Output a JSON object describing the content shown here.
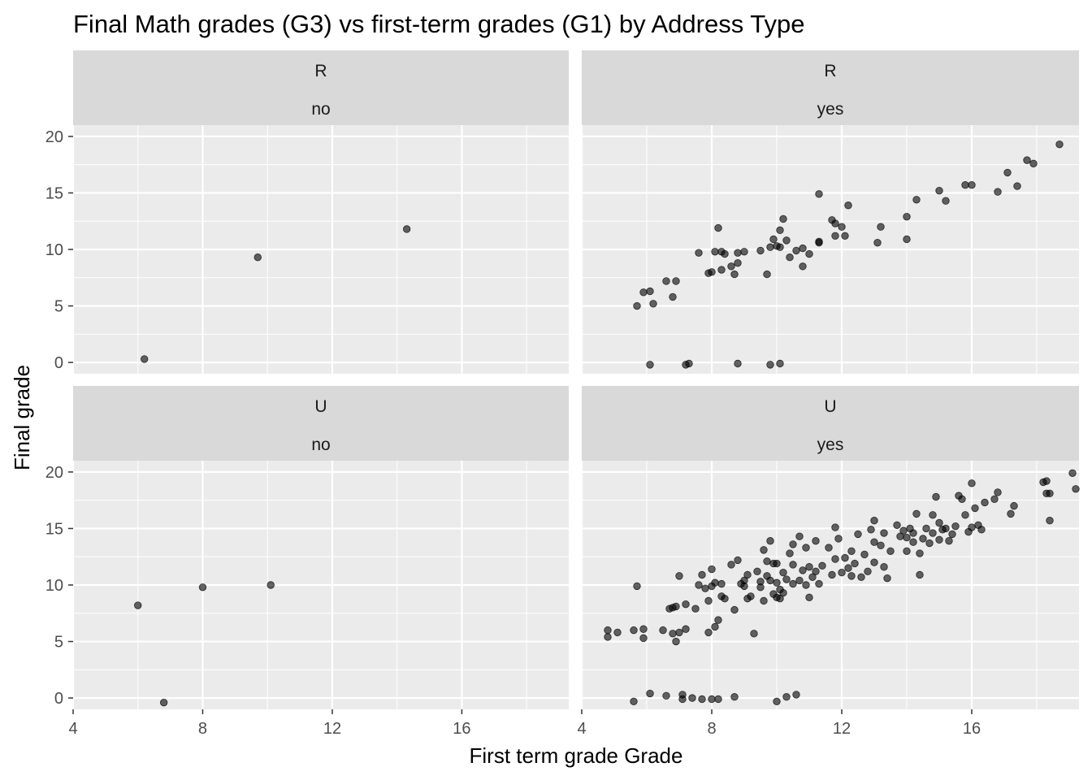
{
  "chart_data": {
    "type": "scatter",
    "title": "Final Math grades (G3) vs first-term grades (G1) by Address Type",
    "xlabel": "First term grade Grade",
    "ylabel": "Final grade",
    "xlim": [
      4,
      19.3
    ],
    "ylim": [
      -1,
      21
    ],
    "xticks": [
      4,
      8,
      12,
      16
    ],
    "yticks": [
      0,
      5,
      10,
      15,
      20
    ],
    "grid": true,
    "colors": {
      "panel_bg": "#ebebeb",
      "strip_bg": "#d9d9d9",
      "grid": "#ffffff",
      "point": "#000000"
    },
    "panels": [
      {
        "row_label": "R",
        "col_label": "no",
        "points": [
          [
            6.2,
            0.3
          ],
          [
            9.7,
            9.3
          ],
          [
            14.3,
            11.8
          ]
        ]
      },
      {
        "row_label": "R",
        "col_label": "yes",
        "points": [
          [
            5.7,
            5.0
          ],
          [
            5.9,
            6.2
          ],
          [
            6.1,
            6.3
          ],
          [
            6.1,
            -0.2
          ],
          [
            6.2,
            5.2
          ],
          [
            6.6,
            7.2
          ],
          [
            6.8,
            5.8
          ],
          [
            6.9,
            7.2
          ],
          [
            7.2,
            -0.2
          ],
          [
            7.3,
            -0.1
          ],
          [
            7.6,
            9.7
          ],
          [
            7.9,
            7.9
          ],
          [
            8.0,
            8.0
          ],
          [
            8.1,
            9.8
          ],
          [
            8.2,
            11.9
          ],
          [
            8.3,
            8.2
          ],
          [
            8.3,
            9.8
          ],
          [
            8.4,
            9.6
          ],
          [
            8.6,
            8.5
          ],
          [
            8.7,
            7.8
          ],
          [
            8.8,
            -0.1
          ],
          [
            8.8,
            9.7
          ],
          [
            8.8,
            8.8
          ],
          [
            9.0,
            9.8
          ],
          [
            9.5,
            9.9
          ],
          [
            9.7,
            7.8
          ],
          [
            9.8,
            10.2
          ],
          [
            9.8,
            -0.2
          ],
          [
            9.9,
            10.9
          ],
          [
            10.0,
            10.3
          ],
          [
            10.1,
            -0.1
          ],
          [
            10.1,
            11.7
          ],
          [
            10.2,
            12.7
          ],
          [
            10.1,
            10.2
          ],
          [
            10.3,
            10.8
          ],
          [
            10.4,
            9.3
          ],
          [
            10.6,
            9.9
          ],
          [
            10.8,
            8.5
          ],
          [
            10.8,
            10.1
          ],
          [
            11.0,
            9.6
          ],
          [
            11.3,
            10.6
          ],
          [
            11.3,
            10.7
          ],
          [
            11.3,
            14.9
          ],
          [
            11.7,
            12.6
          ],
          [
            11.8,
            11.2
          ],
          [
            11.8,
            12.3
          ],
          [
            12.0,
            12.0
          ],
          [
            12.1,
            11.2
          ],
          [
            12.2,
            13.9
          ],
          [
            13.1,
            10.6
          ],
          [
            13.2,
            12.0
          ],
          [
            14.0,
            12.9
          ],
          [
            14.0,
            10.9
          ],
          [
            14.3,
            14.4
          ],
          [
            15.0,
            15.2
          ],
          [
            15.2,
            14.3
          ],
          [
            15.8,
            15.7
          ],
          [
            16.0,
            15.7
          ],
          [
            16.8,
            15.1
          ],
          [
            17.1,
            16.8
          ],
          [
            17.4,
            15.6
          ],
          [
            17.7,
            17.9
          ],
          [
            17.9,
            17.6
          ],
          [
            18.7,
            19.3
          ]
        ]
      },
      {
        "row_label": "U",
        "col_label": "no",
        "points": [
          [
            6.0,
            8.2
          ],
          [
            6.8,
            -0.4
          ],
          [
            8.0,
            9.8
          ],
          [
            10.1,
            10.0
          ]
        ]
      },
      {
        "row_label": "U",
        "col_label": "yes",
        "points": [
          [
            4.8,
            5.4
          ],
          [
            4.8,
            6.0
          ],
          [
            5.1,
            5.8
          ],
          [
            5.6,
            6.0
          ],
          [
            5.6,
            -0.3
          ],
          [
            5.7,
            9.9
          ],
          [
            5.9,
            6.1
          ],
          [
            5.9,
            5.3
          ],
          [
            6.1,
            0.4
          ],
          [
            6.5,
            6.0
          ],
          [
            6.6,
            0.2
          ],
          [
            6.7,
            7.9
          ],
          [
            6.8,
            8.0
          ],
          [
            6.8,
            5.7
          ],
          [
            6.9,
            5.0
          ],
          [
            6.9,
            8.1
          ],
          [
            7.0,
            5.8
          ],
          [
            7.0,
            10.8
          ],
          [
            7.1,
            0.3
          ],
          [
            7.1,
            -0.1
          ],
          [
            7.2,
            6.1
          ],
          [
            7.2,
            8.3
          ],
          [
            7.4,
            0.0
          ],
          [
            7.5,
            7.9
          ],
          [
            7.6,
            10.0
          ],
          [
            7.7,
            10.9
          ],
          [
            7.7,
            -0.1
          ],
          [
            7.8,
            9.7
          ],
          [
            7.9,
            5.8
          ],
          [
            7.9,
            8.6
          ],
          [
            8.0,
            -0.1
          ],
          [
            8.0,
            9.9
          ],
          [
            8.0,
            11.4
          ],
          [
            8.1,
            6.3
          ],
          [
            8.1,
            10.2
          ],
          [
            8.2,
            -0.1
          ],
          [
            8.2,
            6.9
          ],
          [
            8.3,
            9.0
          ],
          [
            8.3,
            10.1
          ],
          [
            8.4,
            8.8
          ],
          [
            8.6,
            11.8
          ],
          [
            8.7,
            0.1
          ],
          [
            8.7,
            7.8
          ],
          [
            8.8,
            12.2
          ],
          [
            8.9,
            10.1
          ],
          [
            9.0,
            9.9
          ],
          [
            9.0,
            10.4
          ],
          [
            9.1,
            10.9
          ],
          [
            9.1,
            8.8
          ],
          [
            9.2,
            9.0
          ],
          [
            9.3,
            5.7
          ],
          [
            9.4,
            11.2
          ],
          [
            9.5,
            9.8
          ],
          [
            9.5,
            10.3
          ],
          [
            9.6,
            13.1
          ],
          [
            9.6,
            8.6
          ],
          [
            9.7,
            10.8
          ],
          [
            9.7,
            12.1
          ],
          [
            9.8,
            13.9
          ],
          [
            9.8,
            10.4
          ],
          [
            9.9,
            11.9
          ],
          [
            9.9,
            9.2
          ],
          [
            10.0,
            -0.3
          ],
          [
            10.0,
            11.9
          ],
          [
            10.0,
            8.9
          ],
          [
            10.0,
            10.2
          ],
          [
            10.1,
            9.6
          ],
          [
            10.1,
            8.8
          ],
          [
            10.2,
            9.3
          ],
          [
            10.2,
            11.1
          ],
          [
            10.3,
            10.5
          ],
          [
            10.3,
            0.1
          ],
          [
            10.4,
            12.8
          ],
          [
            10.5,
            13.6
          ],
          [
            10.5,
            11.8
          ],
          [
            10.5,
            10.1
          ],
          [
            10.6,
            0.3
          ],
          [
            10.7,
            10.4
          ],
          [
            10.7,
            14.3
          ],
          [
            10.8,
            11.3
          ],
          [
            10.9,
            10.0
          ],
          [
            10.9,
            13.3
          ],
          [
            11.0,
            11.6
          ],
          [
            11.0,
            8.9
          ],
          [
            11.1,
            10.7
          ],
          [
            11.2,
            11.2
          ],
          [
            11.2,
            13.9
          ],
          [
            11.3,
            10.1
          ],
          [
            11.4,
            11.7
          ],
          [
            11.6,
            13.3
          ],
          [
            11.7,
            10.9
          ],
          [
            11.8,
            12.3
          ],
          [
            11.8,
            15.1
          ],
          [
            11.9,
            14.1
          ],
          [
            12.0,
            11.1
          ],
          [
            12.1,
            12.4
          ],
          [
            12.2,
            11.5
          ],
          [
            12.3,
            13.0
          ],
          [
            12.3,
            10.8
          ],
          [
            12.4,
            11.9
          ],
          [
            12.5,
            14.5
          ],
          [
            12.6,
            10.7
          ],
          [
            12.7,
            12.7
          ],
          [
            12.8,
            11.2
          ],
          [
            12.9,
            14.9
          ],
          [
            13.0,
            13.8
          ],
          [
            13.0,
            12.0
          ],
          [
            13.0,
            15.7
          ],
          [
            13.2,
            13.5
          ],
          [
            13.3,
            14.6
          ],
          [
            13.3,
            11.6
          ],
          [
            13.4,
            10.6
          ],
          [
            13.5,
            13.0
          ],
          [
            13.7,
            15.3
          ],
          [
            13.8,
            14.3
          ],
          [
            13.9,
            14.8
          ],
          [
            14.0,
            14.2
          ],
          [
            14.0,
            13.0
          ],
          [
            14.1,
            15.0
          ],
          [
            14.2,
            14.6
          ],
          [
            14.2,
            13.8
          ],
          [
            14.3,
            16.3
          ],
          [
            14.4,
            12.8
          ],
          [
            14.4,
            10.9
          ],
          [
            14.5,
            14.1
          ],
          [
            14.6,
            15.0
          ],
          [
            14.7,
            13.7
          ],
          [
            14.8,
            16.2
          ],
          [
            14.8,
            14.6
          ],
          [
            14.9,
            17.8
          ],
          [
            15.0,
            15.5
          ],
          [
            15.0,
            14.0
          ],
          [
            15.1,
            14.9
          ],
          [
            15.2,
            15.0
          ],
          [
            15.3,
            13.9
          ],
          [
            15.4,
            14.5
          ],
          [
            15.5,
            15.2
          ],
          [
            15.6,
            17.9
          ],
          [
            15.7,
            17.6
          ],
          [
            15.8,
            16.2
          ],
          [
            15.9,
            14.7
          ],
          [
            16.0,
            19.0
          ],
          [
            16.0,
            15.1
          ],
          [
            16.1,
            16.8
          ],
          [
            16.2,
            15.3
          ],
          [
            16.3,
            14.9
          ],
          [
            16.4,
            17.3
          ],
          [
            16.7,
            17.6
          ],
          [
            16.8,
            18.2
          ],
          [
            17.2,
            16.3
          ],
          [
            17.3,
            17.0
          ],
          [
            18.2,
            19.1
          ],
          [
            18.3,
            19.2
          ],
          [
            18.3,
            18.1
          ],
          [
            18.4,
            15.7
          ],
          [
            18.4,
            18.1
          ],
          [
            19.1,
            19.9
          ],
          [
            19.2,
            18.5
          ]
        ]
      }
    ]
  }
}
